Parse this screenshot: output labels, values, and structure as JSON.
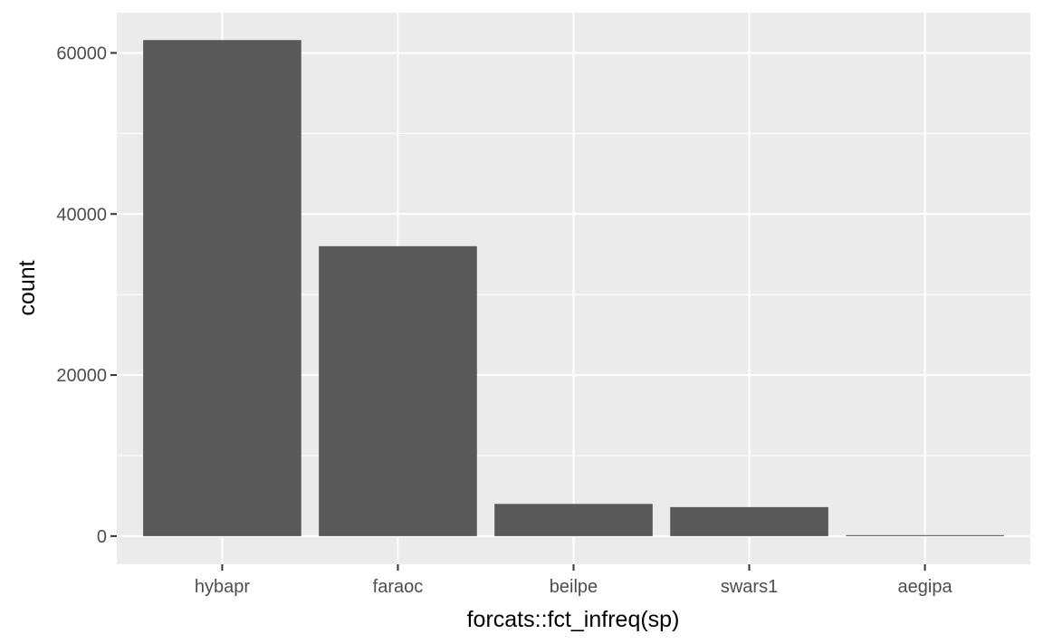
{
  "chart_data": {
    "type": "bar",
    "categories": [
      "hybapr",
      "faraoc",
      "beilpe",
      "swars1",
      "aegipa"
    ],
    "values": [
      61600,
      36000,
      4000,
      3600,
      120
    ],
    "xlabel": "forcats::fct_infreq(sp)",
    "ylabel": "count",
    "ylim": [
      -3500,
      65000
    ],
    "yticks": [
      0,
      20000,
      40000,
      60000
    ],
    "ytick_labels": [
      "0",
      "20000",
      "40000",
      "60000"
    ],
    "grid": true,
    "colors": {
      "panel_background": "#ebebeb",
      "grid_major": "#ffffff",
      "bar_fill": "#595959",
      "tick_text": "#4d4d4d",
      "tick_mark": "#333333",
      "axis_title": "#000000"
    }
  }
}
